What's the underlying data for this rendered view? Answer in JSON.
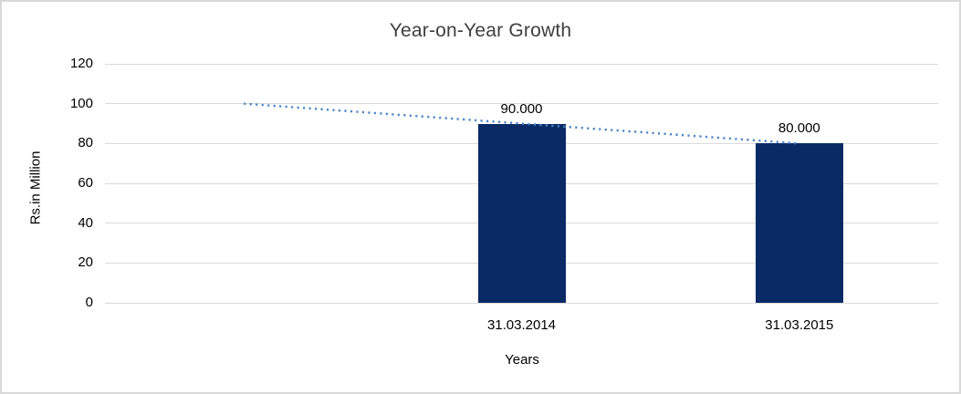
{
  "chart_data": {
    "type": "bar",
    "title": "Year-on-Year Growth",
    "ylabel": "Rs.in Million",
    "xlabel": "Years",
    "categories": [
      "31.03.2014",
      "31.03.2015"
    ],
    "values": [
      90,
      80
    ],
    "data_labels": [
      "90.000",
      "80.000"
    ],
    "yticks": [
      0,
      20,
      40,
      60,
      80,
      100,
      120
    ],
    "ylim": [
      0,
      120
    ],
    "grid": true,
    "legend": "none",
    "axis_slots": 3,
    "bar_slots": [
      1,
      2
    ],
    "bar_color": "#0a2a66",
    "gridline_color": "#d9d9d9",
    "border_color": "#d9d9d9",
    "trendline": {
      "type": "linear",
      "style": "dotted",
      "color": "#4e86c8",
      "start": {
        "slot": 0,
        "value": 100
      },
      "end": {
        "slot": 2,
        "value": 80
      }
    }
  }
}
